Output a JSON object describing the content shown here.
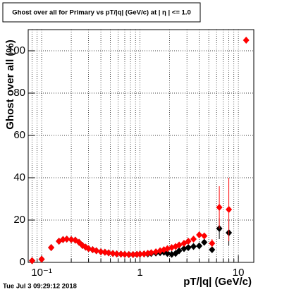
{
  "chart_data": {
    "type": "scatter",
    "title": "Ghost over all for Primary vs pT/|q| (GeV/c) at | η | <= 1.0",
    "x_label": "pT/|q| (GeV/c)",
    "y_label": "Ghost over all (%)",
    "footer": "Tue Jul  3 09:29:12 2018",
    "log_x": true,
    "grid": true,
    "xlim": [
      0.073,
      14.35
    ],
    "ylim": [
      0,
      110
    ],
    "xticks": [
      {
        "value": 0.1,
        "label": "10⁻¹"
      },
      1,
      10
    ],
    "xminor_ticks": [
      0.08,
      0.09,
      0.2,
      0.3,
      0.4,
      0.5,
      0.6,
      0.7,
      0.8,
      0.9,
      2,
      3,
      4,
      5,
      6,
      7,
      8,
      9
    ],
    "yticks": [
      0,
      20,
      40,
      60,
      80,
      100
    ],
    "x": [
      0.08,
      0.1,
      0.125,
      0.15,
      0.165,
      0.18,
      0.2,
      0.22,
      0.24,
      0.26,
      0.28,
      0.3,
      0.33,
      0.36,
      0.4,
      0.44,
      0.48,
      0.53,
      0.58,
      0.64,
      0.7,
      0.77,
      0.85,
      0.93,
      1.0,
      1.1,
      1.2,
      1.3,
      1.45,
      1.6,
      1.75,
      1.9,
      2.1,
      2.3,
      2.5,
      2.8,
      3.1,
      3.5,
      4.0,
      4.5,
      5.4,
      6.4,
      8.0,
      12.0
    ],
    "series": [
      {
        "name": "black",
        "color": "#000000",
        "values": [
          0.8,
          1.5,
          7,
          10,
          10.8,
          11,
          10.8,
          10.5,
          9.5,
          8,
          7.2,
          6.5,
          6,
          5.5,
          5,
          4.8,
          4.5,
          4.2,
          4,
          3.9,
          3.8,
          3.7,
          3.7,
          3.8,
          3.9,
          4,
          4.0,
          4.2,
          4.4,
          4.6,
          4.8,
          4.2,
          3.8,
          4.2,
          5.5,
          6.5,
          7,
          7.5,
          7.8,
          9.5,
          6,
          16,
          14,
          null
        ],
        "errors": [
          null,
          null,
          null,
          null,
          null,
          null,
          null,
          null,
          null,
          null,
          null,
          null,
          null,
          null,
          null,
          null,
          null,
          null,
          null,
          null,
          null,
          null,
          null,
          null,
          null,
          null,
          null,
          null,
          null,
          null,
          null,
          null,
          null,
          null,
          null,
          null,
          null,
          null,
          null,
          null,
          1.5,
          5,
          6,
          null
        ]
      },
      {
        "name": "red",
        "color": "#ff0000",
        "values": [
          0.8,
          1.5,
          7,
          10,
          10.8,
          11,
          10.8,
          10.5,
          9.5,
          8,
          7.2,
          6.5,
          6,
          5.5,
          5,
          4.8,
          4.5,
          4.2,
          4,
          3.9,
          3.8,
          3.7,
          3.7,
          3.8,
          3.9,
          4,
          4.3,
          4.6,
          5,
          5.5,
          6,
          6.5,
          7,
          7.5,
          8.2,
          9,
          10,
          11,
          13,
          12.5,
          9,
          26,
          25,
          105
        ],
        "errors": [
          null,
          null,
          null,
          null,
          null,
          null,
          null,
          null,
          null,
          null,
          null,
          null,
          null,
          null,
          null,
          null,
          null,
          null,
          null,
          null,
          null,
          null,
          null,
          null,
          null,
          null,
          null,
          null,
          null,
          null,
          null,
          null,
          null,
          null,
          null,
          null,
          null,
          null,
          null,
          null,
          2,
          10,
          15,
          null
        ]
      }
    ]
  }
}
